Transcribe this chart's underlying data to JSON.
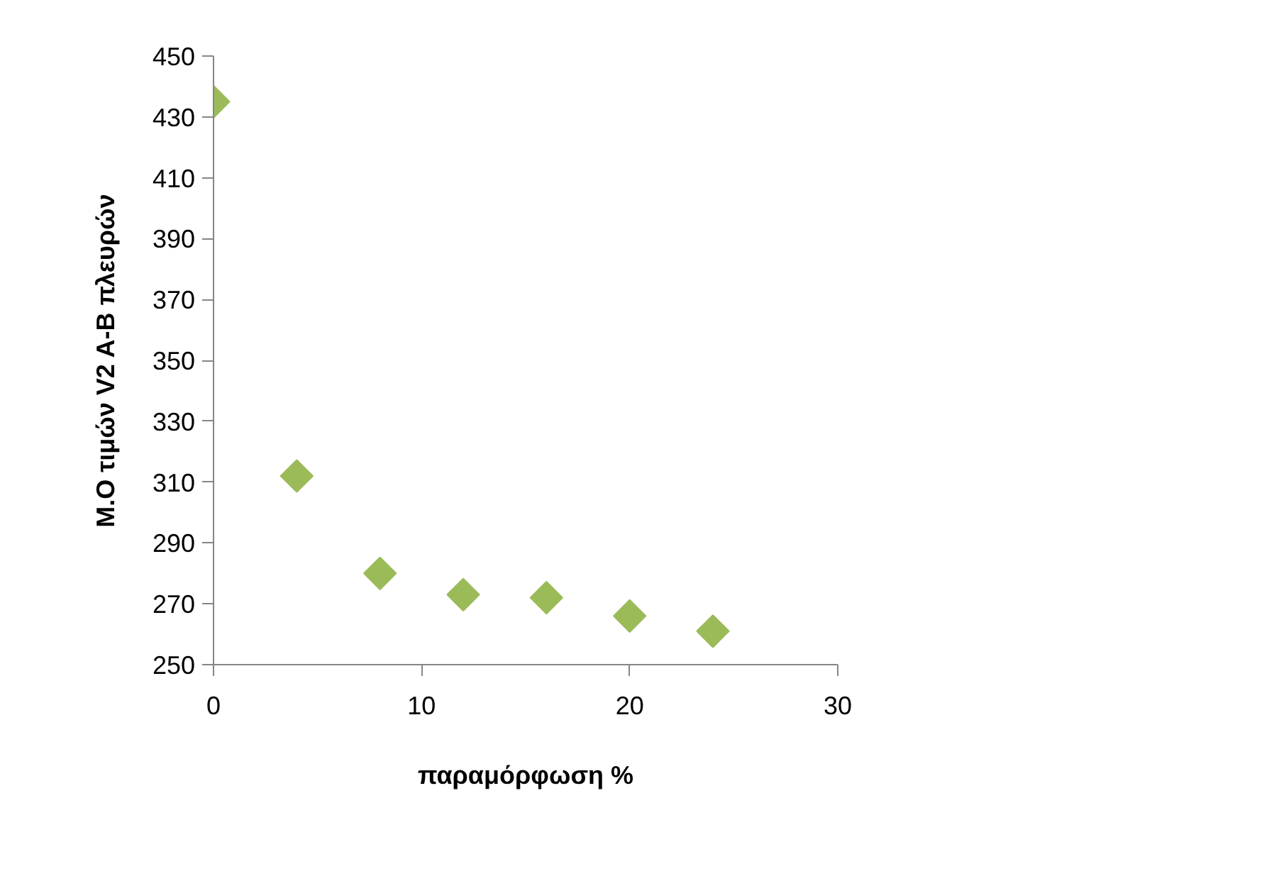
{
  "chart_data": {
    "type": "scatter",
    "xlabel": "παραμόρφωση %",
    "ylabel": "Μ.Ο τιμών V2 A-B πλευρών",
    "x": [
      0,
      4,
      8,
      12,
      16,
      20,
      24
    ],
    "values": [
      435,
      312,
      280,
      273,
      272,
      266,
      261
    ],
    "color": "#9bbb59",
    "marker": "diamond",
    "xlim": [
      0,
      30
    ],
    "xticks": [
      0,
      10,
      20,
      30
    ],
    "ylim": [
      250,
      450
    ],
    "yticks": [
      250,
      270,
      290,
      310,
      330,
      350,
      370,
      390,
      410,
      430,
      450
    ],
    "grid": false
  }
}
